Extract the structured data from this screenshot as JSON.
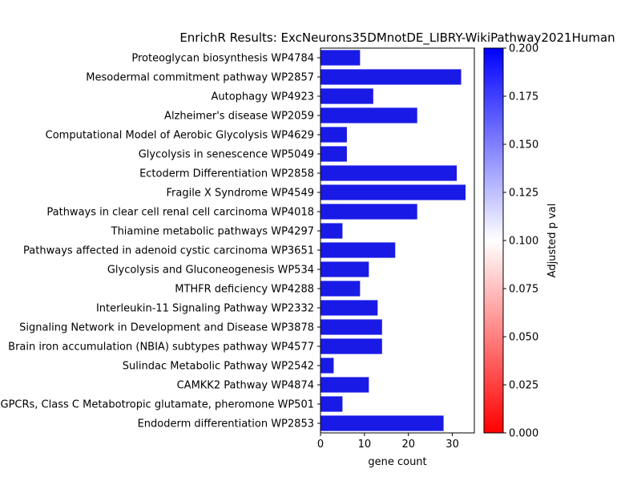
{
  "chart_data": {
    "type": "bar",
    "orientation": "horizontal",
    "title": "EnrichR Results: ExcNeurons35DMnotDE_LIBRY-WikiPathway2021Human",
    "xlabel": "gene count",
    "ylabel": "",
    "xlim": [
      0,
      35
    ],
    "x_ticks": [
      0,
      10,
      20,
      30
    ],
    "grid": false,
    "categories": [
      "Proteoglycan biosynthesis WP4784",
      "Mesodermal commitment pathway WP2857",
      "Autophagy WP4923",
      "Alzheimer's disease WP2059",
      "Computational Model of Aerobic Glycolysis WP4629",
      "Glycolysis in senescence WP5049",
      "Ectoderm Differentiation WP2858",
      "Fragile X Syndrome  WP4549",
      "Pathways in clear cell renal cell carcinoma WP4018",
      "Thiamine metabolic pathways WP4297",
      "Pathways affected in adenoid cystic carcinoma WP3651",
      "Glycolysis and Gluconeogenesis WP534",
      "MTHFR deficiency WP4288",
      "Interleukin-11 Signaling Pathway WP2332",
      "Signaling Network in Development and Disease  WP3878",
      "Brain iron accumulation (NBIA) subtypes pathway WP4577",
      "Sulindac Metabolic Pathway WP2542",
      "CAMKK2  Pathway WP4874",
      "GPCRs, Class C Metabotropic glutamate, pheromone WP501",
      "Endoderm differentiation WP2853"
    ],
    "values": [
      9,
      32,
      12,
      22,
      6,
      6,
      31,
      33,
      22,
      5,
      17,
      11,
      9,
      13,
      14,
      14,
      3,
      11,
      5,
      28
    ],
    "bar_color": "#1a1ae6",
    "colorbar": {
      "label": "Adjusted p val",
      "range": [
        0.0,
        0.2
      ],
      "ticks": [
        "0.000",
        "0.025",
        "0.050",
        "0.075",
        "0.100",
        "0.125",
        "0.150",
        "0.175",
        "0.200"
      ],
      "colors": [
        "#ff0000",
        "#ffffff",
        "#0000ff"
      ]
    }
  }
}
